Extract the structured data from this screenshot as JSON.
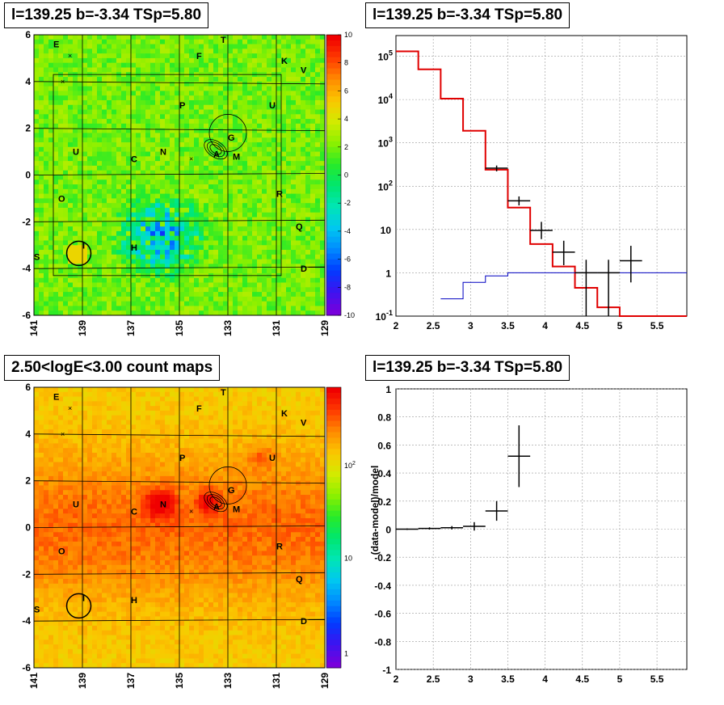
{
  "panels": {
    "tl_title": "l=139.25 b=-3.34 TSp=5.80",
    "tr_title": "l=139.25 b=-3.34 TSp=5.80",
    "bl_title": "2.50<logE<3.00 count maps",
    "br_title": "l=139.25 b=-3.34 TSp=5.80"
  },
  "chart_data": [
    {
      "type": "heatmap",
      "title": "l=139.25 b=-3.34 TSp=5.80",
      "x_ticks": [
        "141",
        "139",
        "137",
        "135",
        "133",
        "131",
        "129"
      ],
      "y_ticks": [
        "6",
        "4",
        "2",
        "0",
        "-2",
        "-4",
        "-6"
      ],
      "xlim": [
        141,
        129
      ],
      "ylim": [
        -6,
        6
      ],
      "colorbar_ticks": [
        "10",
        "8",
        "6",
        "4",
        "2",
        "0",
        "-2",
        "-4",
        "-6",
        "-8",
        "-10"
      ],
      "colorbar_range": [
        -10,
        10
      ],
      "source_labels": [
        "E",
        "T",
        "F",
        "K",
        "V",
        "P",
        "U",
        "C",
        "N",
        "G",
        "A",
        "M",
        "O",
        "R",
        "I",
        "Q",
        "S",
        "H",
        "D",
        "U"
      ],
      "grid": true
    },
    {
      "type": "line",
      "title": "l=139.25 b=-3.34 TSp=5.80",
      "yscale": "log",
      "xlim": [
        2,
        5.9
      ],
      "ylim": [
        0.1,
        300000
      ],
      "x_ticks": [
        "2",
        "2.5",
        "3",
        "3.5",
        "4",
        "4.5",
        "5",
        "5.5"
      ],
      "y_ticks": [
        "10^-1",
        "1",
        "10",
        "10^2",
        "10^3",
        "10^4",
        "10^5"
      ],
      "series": [
        {
          "color": "#e00000",
          "step_edges": [
            2.0,
            2.3,
            2.6,
            2.9,
            3.2,
            3.5,
            3.8,
            4.1,
            4.4,
            4.7,
            5.0,
            5.3,
            5.9
          ],
          "values": [
            130000,
            50000,
            10500,
            1900,
            240,
            32,
            4.6,
            1.4,
            0.45,
            0.16,
            0.1,
            0.1
          ]
        },
        {
          "color": "#0000c0",
          "step_edges": [
            2.6,
            2.9,
            3.2,
            3.5,
            5.9
          ],
          "values": [
            0.25,
            0.6,
            0.85,
            1.0
          ]
        }
      ],
      "points": [
        {
          "x": 3.35,
          "y": 260,
          "xerr": 0.15,
          "ylo": 220,
          "yhi": 300
        },
        {
          "x": 3.65,
          "y": 46,
          "xerr": 0.15,
          "ylo": 36,
          "yhi": 58
        },
        {
          "x": 3.95,
          "y": 9.5,
          "xerr": 0.15,
          "ylo": 6,
          "yhi": 15
        },
        {
          "x": 4.25,
          "y": 3,
          "xerr": 0.15,
          "ylo": 1.5,
          "yhi": 5.5
        },
        {
          "x": 4.55,
          "y": 1.0,
          "xerr": 0.15,
          "ylo": 0.1,
          "yhi": 2.0
        },
        {
          "x": 4.85,
          "y": 1.0,
          "xerr": 0.15,
          "ylo": 0.1,
          "yhi": 2.0
        },
        {
          "x": 5.15,
          "y": 1.9,
          "xerr": 0.15,
          "ylo": 0.6,
          "yhi": 4.2
        }
      ],
      "grid": true
    },
    {
      "type": "heatmap",
      "title": "2.50<logE<3.00 count maps",
      "x_ticks": [
        "141",
        "139",
        "137",
        "135",
        "133",
        "131",
        "129"
      ],
      "y_ticks": [
        "6",
        "4",
        "2",
        "0",
        "-2",
        "-4",
        "-6"
      ],
      "xlim": [
        141,
        129
      ],
      "ylim": [
        -6,
        6
      ],
      "colorbar_ticks": [
        "10^2",
        "10",
        "1"
      ],
      "colorbar_scale": "log",
      "source_labels": [
        "E",
        "T",
        "F",
        "K",
        "V",
        "P",
        "U",
        "C",
        "N",
        "G",
        "A",
        "M",
        "O",
        "R",
        "I",
        "Q",
        "S",
        "H",
        "D",
        "U"
      ],
      "grid": true
    },
    {
      "type": "scatter",
      "title": "l=139.25 b=-3.34 TSp=5.80",
      "ylabel": "(data-model)/model",
      "xlim": [
        2,
        5.9
      ],
      "ylim": [
        -1,
        1
      ],
      "x_ticks": [
        "2",
        "2.5",
        "3",
        "3.5",
        "4",
        "4.5",
        "5",
        "5.5"
      ],
      "y_ticks": [
        "1",
        "0.8",
        "0.6",
        "0.4",
        "0.2",
        "0",
        "-0.2",
        "-0.4",
        "-0.6",
        "-0.8",
        "-1"
      ],
      "points": [
        {
          "x": 2.15,
          "y": 0.0,
          "xerr": 0.15,
          "yerr": 0.005
        },
        {
          "x": 2.45,
          "y": 0.005,
          "xerr": 0.15,
          "yerr": 0.008
        },
        {
          "x": 2.75,
          "y": 0.01,
          "xerr": 0.15,
          "yerr": 0.012
        },
        {
          "x": 3.05,
          "y": 0.02,
          "xerr": 0.15,
          "yerr": 0.03
        },
        {
          "x": 3.35,
          "y": 0.13,
          "xerr": 0.15,
          "yerr": 0.07
        },
        {
          "x": 3.65,
          "y": 0.52,
          "xerr": 0.15,
          "yerr": 0.22
        }
      ],
      "grid": true
    }
  ]
}
